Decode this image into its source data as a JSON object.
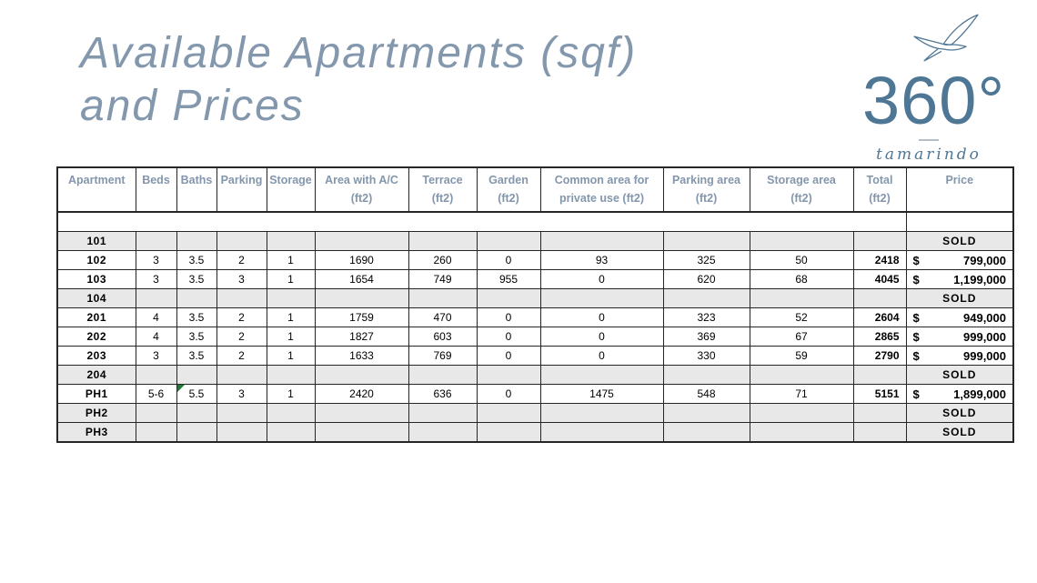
{
  "title": {
    "line1": "Available Apartments (sqf)",
    "line2": "and Prices"
  },
  "logo": {
    "number": "360°",
    "wordmark": "tamarindo",
    "bird_icon": "seagull-icon"
  },
  "table": {
    "sold_label": "SOLD",
    "currency_symbol": "$",
    "columns": [
      {
        "key": "apartment",
        "label": "Apartment",
        "sub": ""
      },
      {
        "key": "beds",
        "label": "Beds",
        "sub": ""
      },
      {
        "key": "baths",
        "label": "Baths",
        "sub": ""
      },
      {
        "key": "parking",
        "label": "Parking",
        "sub": ""
      },
      {
        "key": "storage",
        "label": "Storage",
        "sub": ""
      },
      {
        "key": "area",
        "label": "Area with A/C",
        "sub": "(ft2)"
      },
      {
        "key": "terrace",
        "label": "Terrace",
        "sub": "(ft2)"
      },
      {
        "key": "garden",
        "label": "Garden",
        "sub": "(ft2)"
      },
      {
        "key": "common",
        "label": "Common area for",
        "sub": "private use (ft2)"
      },
      {
        "key": "parking_area",
        "label": "Parking area",
        "sub": "(ft2)"
      },
      {
        "key": "storage_area",
        "label": "Storage area",
        "sub": "(ft2)"
      },
      {
        "key": "total",
        "label": "Total",
        "sub": "(ft2)"
      },
      {
        "key": "price",
        "label": "Price",
        "sub": ""
      }
    ],
    "rows": [
      {
        "apartment": "101",
        "sold": true
      },
      {
        "apartment": "102",
        "sold": false,
        "beds": "3",
        "baths": "3.5",
        "parking": "2",
        "storage": "1",
        "area": "1690",
        "terrace": "260",
        "garden": "0",
        "common": "93",
        "parking_area": "325",
        "storage_area": "50",
        "total": "2418",
        "price": "799,000"
      },
      {
        "apartment": "103",
        "sold": false,
        "beds": "3",
        "baths": "3.5",
        "parking": "3",
        "storage": "1",
        "area": "1654",
        "terrace": "749",
        "garden": "955",
        "common": "0",
        "parking_area": "620",
        "storage_area": "68",
        "total": "4045",
        "price": "1,199,000"
      },
      {
        "apartment": "104",
        "sold": true
      },
      {
        "apartment": "201",
        "sold": false,
        "beds": "4",
        "baths": "3.5",
        "parking": "2",
        "storage": "1",
        "area": "1759",
        "terrace": "470",
        "garden": "0",
        "common": "0",
        "parking_area": "323",
        "storage_area": "52",
        "total": "2604",
        "price": "949,000"
      },
      {
        "apartment": "202",
        "sold": false,
        "beds": "4",
        "baths": "3.5",
        "parking": "2",
        "storage": "1",
        "area": "1827",
        "terrace": "603",
        "garden": "0",
        "common": "0",
        "parking_area": "369",
        "storage_area": "67",
        "total": "2865",
        "price": "999,000"
      },
      {
        "apartment": "203",
        "sold": false,
        "beds": "3",
        "baths": "3.5",
        "parking": "2",
        "storage": "1",
        "area": "1633",
        "terrace": "769",
        "garden": "0",
        "common": "0",
        "parking_area": "330",
        "storage_area": "59",
        "total": "2790",
        "price": "999,000"
      },
      {
        "apartment": "204",
        "sold": true
      },
      {
        "apartment": "PH1",
        "sold": false,
        "baths_note": true,
        "beds": "5-6",
        "baths": "5.5",
        "parking": "3",
        "storage": "1",
        "area": "2420",
        "terrace": "636",
        "garden": "0",
        "common": "1475",
        "parking_area": "548",
        "storage_area": "71",
        "total": "5151",
        "price": "1,899,000"
      },
      {
        "apartment": "PH2",
        "sold": true
      },
      {
        "apartment": "PH3",
        "sold": true
      }
    ]
  },
  "colors": {
    "accent_blue_gray": "#8496ac",
    "title_blue_gray": "#8397ad",
    "logo_blue": "#4e7695",
    "sold_row_bg": "#e8e8e8",
    "table_border": "#262626",
    "data_text": "#000000",
    "note_green": "#1f7a33"
  }
}
